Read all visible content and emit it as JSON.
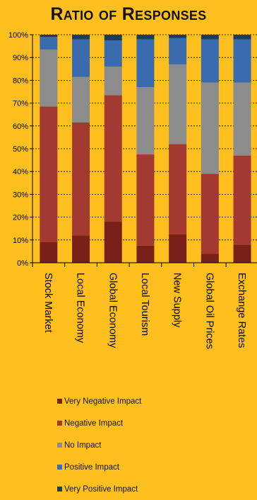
{
  "chart_data": {
    "type": "bar",
    "stacked": true,
    "orientation": "vertical",
    "title": "Ratio of Responses",
    "xlabel": "",
    "ylabel": "",
    "ylim": [
      0,
      100
    ],
    "yticks": [
      "0%",
      "10%",
      "20%",
      "30%",
      "40%",
      "50%",
      "60%",
      "70%",
      "80%",
      "90%",
      "100%"
    ],
    "grid": true,
    "legend": "bottom",
    "categories": [
      "Stock Market",
      "Local Economy",
      "Global Economy",
      "Local Tourism",
      "New Supply",
      "Global Oil Prices",
      "Exchange Rates"
    ],
    "series": [
      {
        "name": "Very Negative Impact",
        "color": "#7B2018",
        "values": [
          9,
          12,
          18,
          7.5,
          12.5,
          4,
          8
        ]
      },
      {
        "name": "Negative Impact",
        "color": "#A33A32",
        "values": [
          59.5,
          49.5,
          55.5,
          40,
          39.5,
          35,
          39
        ]
      },
      {
        "name": "No Impact",
        "color": "#8C8C8C",
        "values": [
          25,
          20,
          12.5,
          29.5,
          35,
          40,
          32
        ]
      },
      {
        "name": "Positive Impact",
        "color": "#3A6BAE",
        "values": [
          5.5,
          16.5,
          11.5,
          21,
          11.5,
          19,
          19
        ]
      },
      {
        "name": "Very Positive Impact",
        "color": "#1F3A60",
        "values": [
          1,
          2,
          2.5,
          2,
          1.5,
          2,
          2
        ]
      }
    ]
  }
}
